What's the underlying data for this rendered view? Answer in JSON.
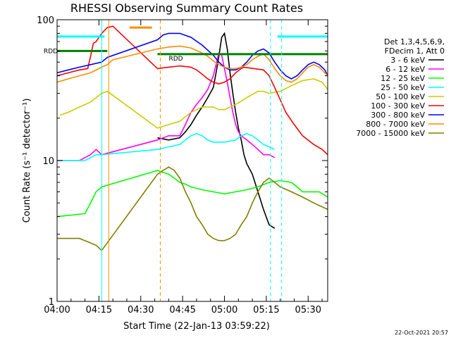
{
  "chart_data": {
    "type": "line",
    "title": "RHESSI Observing Summary Count Rates",
    "xlabel": "Start Time (22-Jan-13 03:59:22)",
    "ylabel": "Count Rate (s⁻¹ detector⁻¹)",
    "x_ticks": [
      "04:00",
      "04:15",
      "04:30",
      "04:45",
      "05:00",
      "05:15",
      "05:30"
    ],
    "x_tick_minutes": [
      0,
      15,
      30,
      45,
      60,
      75,
      90
    ],
    "xlim_minutes": [
      0,
      97
    ],
    "y_scale": "log",
    "ylim": [
      1,
      100
    ],
    "y_ticks": [
      "1",
      "10",
      "100"
    ],
    "y_tick_values": [
      1,
      10,
      100
    ],
    "grid": false,
    "legend_position": "right",
    "legend_header": [
      "Det 1,3,4,5,6,9,",
      "FDecim 1, Att 0"
    ],
    "series": [
      {
        "name": "3 - 6 keV",
        "color": "#000000",
        "points": [
          [
            36,
            14.5
          ],
          [
            40,
            14.0
          ],
          [
            44,
            14.5
          ],
          [
            46,
            16
          ],
          [
            48,
            18
          ],
          [
            50,
            21
          ],
          [
            52,
            24
          ],
          [
            54,
            28
          ],
          [
            56,
            33
          ],
          [
            57,
            42
          ],
          [
            58,
            55
          ],
          [
            59,
            75
          ],
          [
            60,
            80
          ],
          [
            61,
            62
          ],
          [
            62,
            42
          ],
          [
            63,
            30
          ],
          [
            64,
            22
          ],
          [
            65,
            17
          ],
          [
            66,
            14
          ],
          [
            67,
            11
          ],
          [
            68,
            9.5
          ],
          [
            70,
            8
          ],
          [
            72,
            6
          ],
          [
            74,
            4.5
          ],
          [
            76,
            3.5
          ],
          [
            78,
            3.3
          ]
        ]
      },
      {
        "name": "6 - 12 keV",
        "color": "#ff00ff",
        "points": [
          [
            0,
            10
          ],
          [
            8,
            10
          ],
          [
            10,
            10.5
          ],
          [
            12,
            11
          ],
          [
            14,
            12
          ],
          [
            16,
            11
          ],
          [
            36,
            14
          ],
          [
            40,
            15
          ],
          [
            44,
            15
          ],
          [
            46,
            18
          ],
          [
            48,
            22
          ],
          [
            50,
            25
          ],
          [
            52,
            28
          ],
          [
            54,
            32
          ],
          [
            56,
            40
          ],
          [
            57,
            48
          ],
          [
            58,
            58
          ],
          [
            59,
            56
          ],
          [
            60,
            45
          ],
          [
            61,
            36
          ],
          [
            62,
            28
          ],
          [
            63,
            22
          ],
          [
            64,
            18
          ],
          [
            65,
            16
          ],
          [
            66,
            15
          ],
          [
            68,
            14
          ],
          [
            70,
            13
          ],
          [
            72,
            12
          ],
          [
            74,
            11
          ],
          [
            76,
            11
          ],
          [
            78,
            10.5
          ]
        ]
      },
      {
        "name": "12 - 25 keV",
        "color": "#00ff00",
        "points": [
          [
            0,
            4
          ],
          [
            10,
            4.2
          ],
          [
            12,
            5
          ],
          [
            14,
            6
          ],
          [
            16,
            6.5
          ],
          [
            36,
            8.5
          ],
          [
            40,
            8
          ],
          [
            42,
            7.5
          ],
          [
            44,
            7
          ],
          [
            46,
            6.8
          ],
          [
            48,
            6.5
          ],
          [
            52,
            6.2
          ],
          [
            56,
            6
          ],
          [
            60,
            5.8
          ],
          [
            64,
            6
          ],
          [
            68,
            6.2
          ],
          [
            72,
            6.5
          ],
          [
            76,
            7
          ],
          [
            80,
            7.2
          ],
          [
            84,
            7
          ],
          [
            86,
            6.5
          ],
          [
            88,
            6
          ],
          [
            94,
            6
          ],
          [
            97,
            5.5
          ]
        ]
      },
      {
        "name": "25 - 50 keV",
        "color": "#00ffff",
        "points": [
          [
            0,
            10
          ],
          [
            10,
            10
          ],
          [
            12,
            10.5
          ],
          [
            14,
            11
          ],
          [
            16,
            11
          ],
          [
            36,
            12
          ],
          [
            40,
            12.5
          ],
          [
            44,
            13
          ],
          [
            46,
            14
          ],
          [
            48,
            15
          ],
          [
            50,
            15.5
          ],
          [
            52,
            15
          ],
          [
            54,
            14
          ],
          [
            56,
            13.5
          ],
          [
            60,
            13.5
          ],
          [
            64,
            14
          ],
          [
            66,
            15
          ],
          [
            68,
            15.5
          ],
          [
            70,
            15
          ],
          [
            72,
            14
          ],
          [
            74,
            13
          ],
          [
            76,
            12.5
          ],
          [
            78,
            12
          ]
        ]
      },
      {
        "name": "50 - 100 keV",
        "color": "#cccc00",
        "points": [
          [
            1,
            21
          ],
          [
            4,
            22
          ],
          [
            8,
            24
          ],
          [
            12,
            26
          ],
          [
            14,
            28
          ],
          [
            16,
            30
          ],
          [
            18,
            31
          ],
          [
            36,
            17
          ],
          [
            40,
            18
          ],
          [
            44,
            19
          ],
          [
            48,
            22
          ],
          [
            52,
            24
          ],
          [
            56,
            24
          ],
          [
            58,
            23
          ],
          [
            60,
            23
          ],
          [
            64,
            25
          ],
          [
            68,
            28
          ],
          [
            72,
            31
          ],
          [
            74,
            31
          ],
          [
            76,
            30
          ],
          [
            80,
            31
          ],
          [
            84,
            34
          ],
          [
            88,
            37
          ],
          [
            92,
            38
          ],
          [
            95,
            36
          ],
          [
            97,
            32
          ]
        ]
      },
      {
        "name": "100 - 300 keV",
        "color": "#ff0000",
        "points": [
          [
            0,
            40
          ],
          [
            4,
            42
          ],
          [
            8,
            44
          ],
          [
            11,
            45
          ],
          [
            12,
            55
          ],
          [
            13,
            68
          ],
          [
            14,
            70
          ],
          [
            16,
            80
          ],
          [
            18,
            88
          ],
          [
            20,
            90
          ],
          [
            36,
            45
          ],
          [
            40,
            46
          ],
          [
            44,
            47
          ],
          [
            48,
            46
          ],
          [
            50,
            44
          ],
          [
            52,
            41
          ],
          [
            54,
            38
          ],
          [
            56,
            36
          ],
          [
            58,
            35
          ],
          [
            60,
            36
          ],
          [
            62,
            38
          ],
          [
            64,
            42
          ],
          [
            66,
            45
          ],
          [
            67,
            46
          ],
          [
            74,
            44
          ],
          [
            76,
            40
          ],
          [
            78,
            33
          ],
          [
            80,
            27
          ],
          [
            82,
            22
          ],
          [
            85,
            18
          ],
          [
            88,
            15
          ],
          [
            92,
            13
          ],
          [
            95,
            12
          ],
          [
            97,
            11
          ]
        ]
      },
      {
        "name": "300 - 800 keV",
        "color": "#0000ff",
        "points": [
          [
            0,
            42
          ],
          [
            4,
            44
          ],
          [
            8,
            46
          ],
          [
            12,
            48
          ],
          [
            16,
            50
          ],
          [
            18,
            54
          ],
          [
            36,
            72
          ],
          [
            38,
            78
          ],
          [
            40,
            80
          ],
          [
            44,
            80
          ],
          [
            48,
            75
          ],
          [
            52,
            66
          ],
          [
            56,
            56
          ],
          [
            58,
            50
          ],
          [
            60,
            46
          ],
          [
            62,
            44
          ],
          [
            64,
            44
          ],
          [
            66,
            46
          ],
          [
            68,
            50
          ],
          [
            70,
            56
          ],
          [
            72,
            60
          ],
          [
            74,
            62
          ],
          [
            76,
            58
          ],
          [
            78,
            50
          ],
          [
            80,
            44
          ],
          [
            82,
            40
          ],
          [
            84,
            38
          ],
          [
            86,
            40
          ],
          [
            88,
            44
          ],
          [
            90,
            48
          ],
          [
            92,
            50
          ],
          [
            94,
            48
          ],
          [
            96,
            44
          ],
          [
            97,
            40
          ]
        ]
      },
      {
        "name": "800 - 7000 keV",
        "color": "#ff8c00",
        "points": [
          [
            0,
            36
          ],
          [
            4,
            38
          ],
          [
            8,
            40
          ],
          [
            12,
            42
          ],
          [
            16,
            46
          ],
          [
            18,
            48
          ],
          [
            20,
            52
          ],
          [
            36,
            62
          ],
          [
            40,
            64
          ],
          [
            44,
            65
          ],
          [
            48,
            63
          ],
          [
            52,
            58
          ],
          [
            54,
            55
          ],
          [
            56,
            51
          ],
          [
            58,
            48
          ],
          [
            60,
            46
          ],
          [
            62,
            45
          ],
          [
            64,
            45
          ],
          [
            66,
            46
          ],
          [
            68,
            48
          ],
          [
            70,
            52
          ],
          [
            72,
            55
          ],
          [
            74,
            57
          ],
          [
            76,
            52
          ],
          [
            78,
            45
          ],
          [
            80,
            40
          ],
          [
            82,
            37
          ],
          [
            84,
            36
          ],
          [
            86,
            38
          ],
          [
            88,
            42
          ],
          [
            90,
            46
          ],
          [
            92,
            48
          ],
          [
            94,
            46
          ],
          [
            96,
            42
          ],
          [
            97,
            40
          ]
        ]
      },
      {
        "name": "7000 - 15000 keV",
        "color": "#808000",
        "points": [
          [
            0,
            2.8
          ],
          [
            4,
            2.8
          ],
          [
            8,
            2.8
          ],
          [
            12,
            2.6
          ],
          [
            14,
            2.5
          ],
          [
            16,
            2.3
          ],
          [
            36,
            8
          ],
          [
            38,
            8.5
          ],
          [
            40,
            9
          ],
          [
            42,
            8.5
          ],
          [
            44,
            7.5
          ],
          [
            46,
            6
          ],
          [
            48,
            5
          ],
          [
            50,
            4
          ],
          [
            52,
            3.5
          ],
          [
            54,
            3
          ],
          [
            56,
            2.8
          ],
          [
            58,
            2.7
          ],
          [
            60,
            2.7
          ],
          [
            62,
            2.8
          ],
          [
            64,
            3
          ],
          [
            66,
            3.5
          ],
          [
            68,
            4
          ],
          [
            70,
            5
          ],
          [
            72,
            6
          ],
          [
            74,
            7
          ],
          [
            76,
            7.5
          ],
          [
            78,
            7
          ],
          [
            80,
            6.5
          ],
          [
            84,
            6
          ],
          [
            88,
            5.5
          ],
          [
            92,
            5
          ],
          [
            97,
            4.5
          ]
        ]
      }
    ],
    "overlay_bars": [
      {
        "label": "RDD",
        "color": "#008000",
        "start": 0,
        "end": 18,
        "level": 60
      },
      {
        "label": "RDD",
        "color": "#008000",
        "start": 36,
        "end": 97,
        "level": 57
      },
      {
        "label": "",
        "color": "#00ffff",
        "start": 0,
        "end": 17,
        "level": 76
      },
      {
        "label": "",
        "color": "#00ffff",
        "start": 79,
        "end": 97,
        "level": 76
      },
      {
        "label": "",
        "color": "#ff8c00",
        "start": 26,
        "end": 34,
        "level": 88
      }
    ],
    "overlay_labels": [
      "RDD",
      "RDD"
    ],
    "overlay_vlines": [
      {
        "at": 16.0,
        "color": "#00ffff"
      },
      {
        "at": 18.5,
        "color": "#ff8c00"
      },
      {
        "at": 37.0,
        "color": "#ff8c00",
        "dashed": true
      },
      {
        "at": 76.5,
        "color": "#00ffff",
        "dashed": true
      },
      {
        "at": 80.5,
        "color": "#00ffff",
        "dashed": true
      },
      {
        "at": 97.0,
        "color": "#00ffff",
        "dashed": true
      }
    ],
    "footer": "22-Oct-2021 20:57"
  }
}
